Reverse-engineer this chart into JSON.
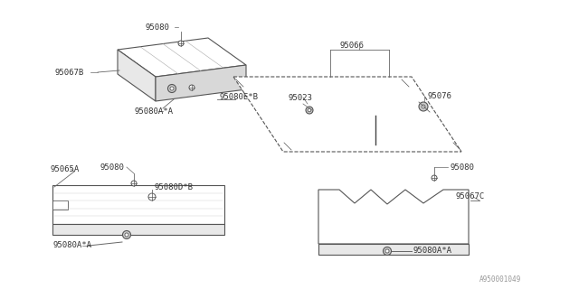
{
  "bg_color": "#ffffff",
  "line_color": "#555555",
  "text_color": "#333333",
  "watermark": "A950001049",
  "parts": {
    "95080_top": {
      "label": "95080"
    },
    "95067B": {
      "label": "95067B"
    },
    "95080E_B": {
      "label": "95080E*B"
    },
    "95080A_A_top": {
      "label": "95080A*A"
    },
    "95066": {
      "label": "95066"
    },
    "95023": {
      "label": "95023"
    },
    "95076": {
      "label": "95076"
    },
    "95065A": {
      "label": "95065A"
    },
    "95080_mid": {
      "label": "95080"
    },
    "95080D_B": {
      "label": "95080D*B"
    },
    "95080A_A_bot": {
      "label": "95080A*A"
    },
    "95080_right": {
      "label": "95080"
    },
    "95067C": {
      "label": "95067C"
    },
    "95080A_A_right": {
      "label": "95080A*A"
    }
  }
}
